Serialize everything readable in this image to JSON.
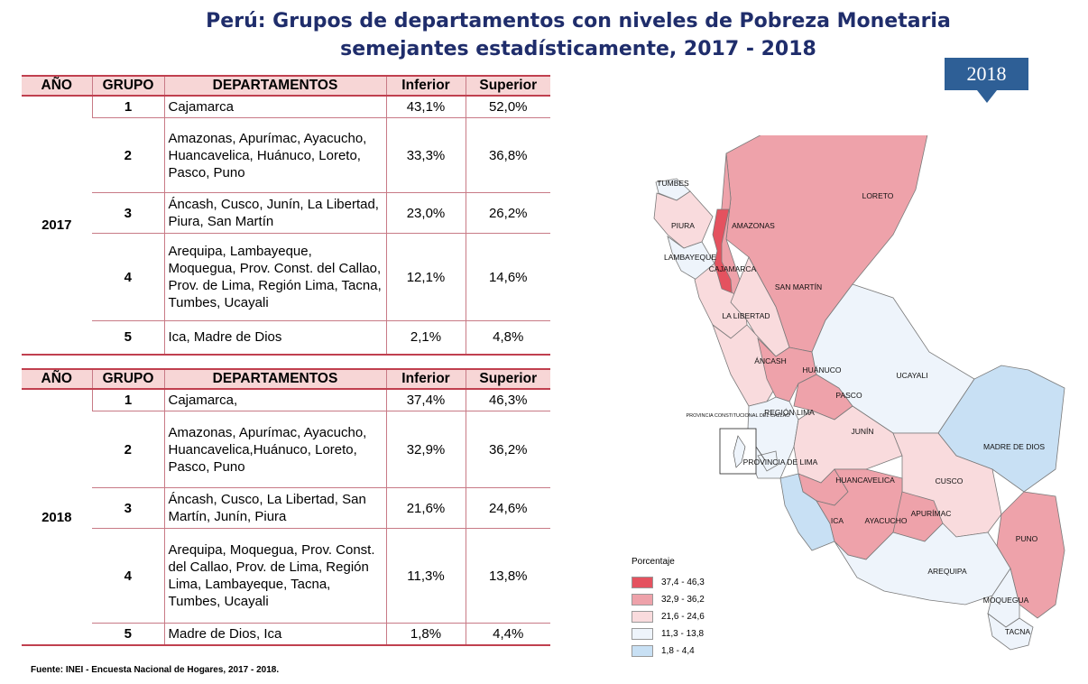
{
  "title": {
    "line1": "Perú: Grupos de departamentos con niveles de Pobreza Monetaria",
    "line2": "semejantes estadísticamente, 2017 - 2018"
  },
  "headers": [
    "AÑO",
    "GRUPO",
    "DEPARTAMENTOS",
    "Inferior",
    "Superior"
  ],
  "tables": [
    {
      "year": "2017",
      "rows": [
        {
          "group": "1",
          "departments": "Cajamarca",
          "lower": "43,1%",
          "upper": "52,0%"
        },
        {
          "group": "2",
          "departments": "Amazonas, Apurímac, Ayacucho, Huancavelica, Huánuco, Loreto, Pasco, Puno",
          "lower": "33,3%",
          "upper": "36,8%"
        },
        {
          "group": "3",
          "departments": "Áncash, Cusco, Junín, La Libertad, Piura, San Martín",
          "lower": "23,0%",
          "upper": "26,2%"
        },
        {
          "group": "4",
          "departments": "Arequipa, Lambayeque, Moquegua, Prov. Const. del Callao, Prov. de Lima, Región Lima, Tacna, Tumbes, Ucayali",
          "lower": "12,1%",
          "upper": "14,6%"
        },
        {
          "group": "5",
          "departments": "Ica, Madre de Dios",
          "lower": "2,1%",
          "upper": "4,8%"
        }
      ]
    },
    {
      "year": "2018",
      "rows": [
        {
          "group": "1",
          "departments": "Cajamarca,",
          "lower": "37,4%",
          "upper": "46,3%"
        },
        {
          "group": "2",
          "departments": "Amazonas, Apurímac, Ayacucho, Huancavelica,Huánuco, Loreto, Pasco, Puno",
          "lower": "32,9%",
          "upper": "36,2%"
        },
        {
          "group": "3",
          "departments": "Áncash, Cusco, La Libertad, San Martín, Junín, Piura",
          "lower": "21,6%",
          "upper": "24,6%"
        },
        {
          "group": "4",
          "departments": "Arequipa, Moquegua, Prov. Const. del Callao, Prov. de Lima, Región Lima, Lambayeque, Tacna, Tumbes, Ucayali",
          "lower": "11,3%",
          "upper": "13,8%"
        },
        {
          "group": "5",
          "departments": "Madre de Dios, Ica",
          "lower": "1,8%",
          "upper": "4,4%"
        }
      ]
    }
  ],
  "source": "Fuente: INEI - Encuesta Nacional de Hogares,  2017 - 2018.",
  "map": {
    "year_badge": "2018",
    "callao_label": "PROVINCIA CONSTITUCIONAL DEL CALLAO",
    "departments": [
      {
        "name": "TUMBES",
        "group": 4
      },
      {
        "name": "PIURA",
        "group": 3
      },
      {
        "name": "LAMBAYEQUE",
        "group": 4
      },
      {
        "name": "CAJAMARCA",
        "group": 1
      },
      {
        "name": "AMAZONAS",
        "group": 2
      },
      {
        "name": "LORETO",
        "group": 2
      },
      {
        "name": "SAN MARTÍN",
        "group": 3
      },
      {
        "name": "LA LIBERTAD",
        "group": 3
      },
      {
        "name": "ÁNCASH",
        "group": 3
      },
      {
        "name": "HUÁNUCO",
        "group": 2
      },
      {
        "name": "PASCO",
        "group": 2
      },
      {
        "name": "UCAYALI",
        "group": 4
      },
      {
        "name": "REGIÓN LIMA",
        "group": 4
      },
      {
        "name": "PROVINCIA DE LIMA",
        "group": 4
      },
      {
        "name": "JUNÍN",
        "group": 3
      },
      {
        "name": "MADRE DE DIOS",
        "group": 5
      },
      {
        "name": "HUANCAVELICA",
        "group": 2
      },
      {
        "name": "CUSCO",
        "group": 3
      },
      {
        "name": "ICA",
        "group": 5
      },
      {
        "name": "AYACUCHO",
        "group": 2
      },
      {
        "name": "APURÍMAC",
        "group": 2
      },
      {
        "name": "PUNO",
        "group": 2
      },
      {
        "name": "AREQUIPA",
        "group": 4
      },
      {
        "name": "MOQUEGUA",
        "group": 4
      },
      {
        "name": "TACNA",
        "group": 4
      }
    ]
  },
  "legend": {
    "title": "Porcentaje",
    "items": [
      {
        "label": "37,4 - 46,3",
        "color": "#e4525f"
      },
      {
        "label": "32,9 - 36,2",
        "color": "#eea2aa"
      },
      {
        "label": "21,6 - 24,6",
        "color": "#f9dbdd"
      },
      {
        "label": "11,3 - 13,8",
        "color": "#eef4fb"
      },
      {
        "label": "1,8 - 4,4",
        "color": "#c8e0f4"
      }
    ]
  }
}
